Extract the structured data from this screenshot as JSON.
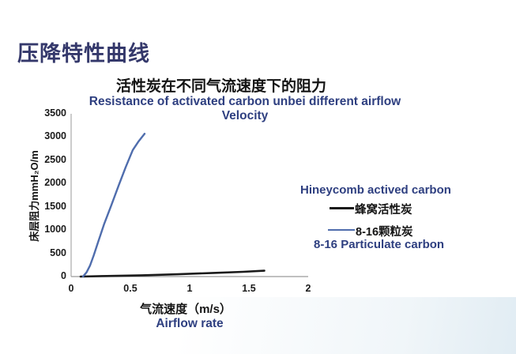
{
  "slide": {
    "title": "压降特性曲线",
    "title_color": "#34386b",
    "background_color": "#ffffff",
    "accent_blue": "#2e3f80"
  },
  "chart": {
    "title_zh": "活性炭在不同气流速度下的阻力",
    "title_en": "Resistance of activated carbon unbei different airflow Velocity",
    "y_axis_label": "床层阻力mmH₂O/m",
    "x_axis_label_zh": "气流速度（m/s）",
    "x_axis_label_en": "Airflow rate",
    "legend": {
      "honeycomb_en": "Hineycomb actived carbon",
      "honeycomb_zh": "蜂窝活性炭",
      "particulate_zh": "8-16颗粒炭",
      "particulate_en": "8-16 Particulate carbon"
    }
  },
  "chart_data": {
    "type": "line",
    "title": "活性炭在不同气流速度下的阻力",
    "subtitle": "Resistance of activated carbon unbei different airflow Velocity",
    "xlabel": "气流速度（m/s） / Airflow rate",
    "ylabel": "床层阻力mmH₂O/m",
    "xlim": [
      0,
      2
    ],
    "ylim": [
      0,
      3500
    ],
    "x_ticks": [
      0,
      0.5,
      1,
      1.5,
      2
    ],
    "y_ticks": [
      0,
      500,
      1000,
      1500,
      2000,
      2500,
      3000,
      3500
    ],
    "grid": false,
    "legend_position": "right",
    "axis_color": "#9a9a9a",
    "series": [
      {
        "name": "蜂窝活性炭 (Hineycomb actived carbon)",
        "color": "#1a1a1a",
        "width": 2.6,
        "points": [
          [
            0.08,
            0
          ],
          [
            0.3,
            12
          ],
          [
            0.6,
            28
          ],
          [
            0.9,
            50
          ],
          [
            1.2,
            78
          ],
          [
            1.45,
            102
          ],
          [
            1.63,
            125
          ]
        ]
      },
      {
        "name": "8-16颗粒炭 (8-16 Particulate carbon)",
        "color": "#4f6dad",
        "width": 2.4,
        "points": [
          [
            0.1,
            0
          ],
          [
            0.13,
            90
          ],
          [
            0.16,
            240
          ],
          [
            0.19,
            450
          ],
          [
            0.23,
            760
          ],
          [
            0.28,
            1140
          ],
          [
            0.34,
            1540
          ],
          [
            0.4,
            1950
          ],
          [
            0.46,
            2350
          ],
          [
            0.52,
            2720
          ],
          [
            0.57,
            2910
          ],
          [
            0.62,
            3070
          ]
        ]
      }
    ]
  }
}
